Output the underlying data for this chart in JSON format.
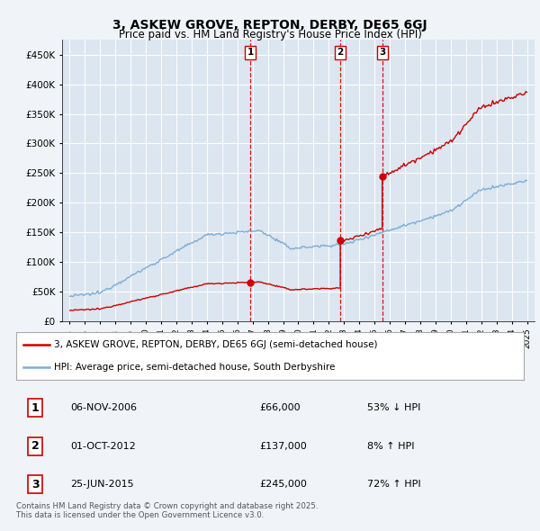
{
  "title": "3, ASKEW GROVE, REPTON, DERBY, DE65 6GJ",
  "subtitle": "Price paid vs. HM Land Registry's House Price Index (HPI)",
  "legend_label_red": "3, ASKEW GROVE, REPTON, DERBY, DE65 6GJ (semi-detached house)",
  "legend_label_blue": "HPI: Average price, semi-detached house, South Derbyshire",
  "footer": "Contains HM Land Registry data © Crown copyright and database right 2025.\nThis data is licensed under the Open Government Licence v3.0.",
  "transaction_prices": [
    66000,
    137000,
    245000
  ],
  "transaction_years": [
    2006.85,
    2012.75,
    2015.5
  ],
  "transaction_dates": [
    "06-NOV-2006",
    "01-OCT-2012",
    "25-JUN-2015"
  ],
  "transaction_hpi": [
    "53% ↓ HPI",
    "8% ↑ HPI",
    "72% ↑ HPI"
  ],
  "transaction_price_labels": [
    "£66,000",
    "£137,000",
    "£245,000"
  ],
  "ylim": [
    0,
    475000
  ],
  "yticks": [
    0,
    50000,
    100000,
    150000,
    200000,
    250000,
    300000,
    350000,
    400000,
    450000
  ],
  "xlim_start": 1994.5,
  "xlim_end": 2025.5,
  "background_color": "#f0f4f8",
  "plot_bg_color": "#dce6f0",
  "red_color": "#cc0000",
  "blue_color": "#7aaed6",
  "dashed_color": "#cc0000"
}
